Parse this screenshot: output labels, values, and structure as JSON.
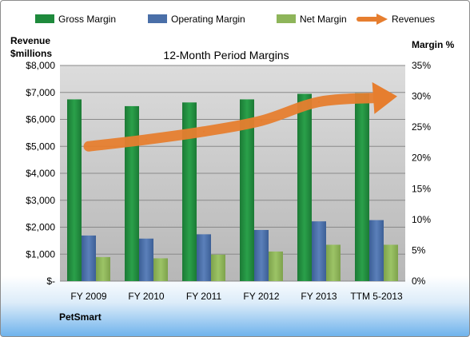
{
  "chart_data": {
    "type": "bar",
    "title": "12-Month Period Margins",
    "company": "PetSmart",
    "y_left_label_line1": "Revenue",
    "y_left_label_line2": "$millions",
    "y_right_label": "Margin %",
    "categories": [
      "FY 2009",
      "FY 2010",
      "FY 2011",
      "FY 2012",
      "FY 2013",
      "TTM 5-2013"
    ],
    "y_left_ticks": [
      "$-",
      "$1,000",
      "$2,000",
      "$3,000",
      "$4,000",
      "$5,000",
      "$6,000",
      "$7,000",
      "$8,000"
    ],
    "y_right_ticks": [
      "0%",
      "5%",
      "10%",
      "15%",
      "20%",
      "25%",
      "30%",
      "35%"
    ],
    "ylim_left": [
      0,
      8000
    ],
    "ylim_right": [
      0,
      35
    ],
    "grid": true,
    "legend_position": "top",
    "series": [
      {
        "name": "Gross Margin",
        "axis": "right",
        "kind": "bar",
        "color": "#1e8a3c",
        "values": [
          29.5,
          28.4,
          29.0,
          29.5,
          30.4,
          30.5
        ]
      },
      {
        "name": "Operating Margin",
        "axis": "right",
        "kind": "bar",
        "color": "#4a6fa8",
        "values": [
          7.4,
          6.9,
          7.6,
          8.3,
          9.7,
          9.9
        ]
      },
      {
        "name": "Net Margin",
        "axis": "right",
        "kind": "bar",
        "color": "#8eb55a",
        "values": [
          3.9,
          3.7,
          4.3,
          4.8,
          5.9,
          5.9
        ]
      },
      {
        "name": "Revenues",
        "axis": "left",
        "kind": "line",
        "color": "#e67e2f",
        "values": [
          5000,
          5250,
          5550,
          5950,
          6650,
          6800
        ]
      }
    ]
  }
}
